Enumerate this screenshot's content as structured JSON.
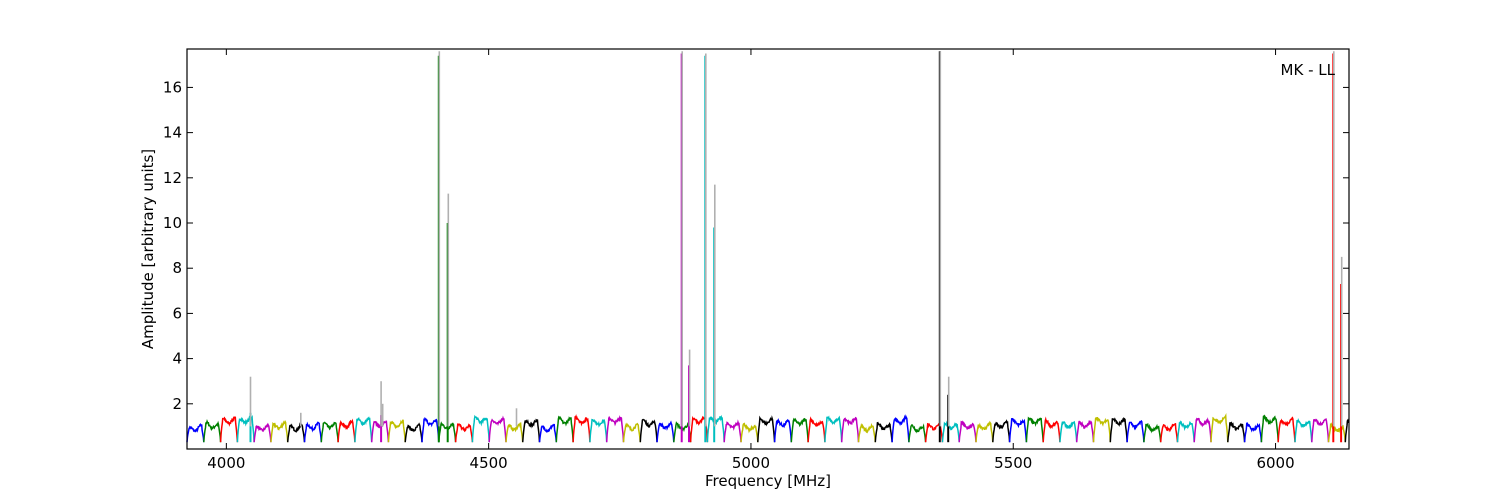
{
  "chart_data": {
    "type": "line",
    "title": "",
    "xlabel": "Frequency [MHz]",
    "ylabel": "Amplitude [arbitrary units]",
    "annotation": "MK - LL",
    "xlim": [
      3925,
      6140
    ],
    "ylim": [
      0.0,
      17.7
    ],
    "xticks": [
      4000,
      4500,
      5000,
      5500,
      6000
    ],
    "xtick_labels": [
      "4000",
      "4500",
      "5000",
      "5500",
      "6000"
    ],
    "yticks": [
      2,
      4,
      6,
      8,
      10,
      12,
      14,
      16
    ],
    "ytick_labels": [
      "2",
      "4",
      "6",
      "8",
      "10",
      "12",
      "14",
      "16"
    ],
    "grid": false,
    "legend": "none",
    "band_pattern": {
      "description": "repeating per-band bandpass ripple",
      "band_width_mhz": 32,
      "baseline": 1.15,
      "dip_min": 0.3
    },
    "colors_cycle": [
      "#0000ff",
      "#008000",
      "#ff0000",
      "#00bfbf",
      "#bf00bf",
      "#bfbf00",
      "#000000"
    ],
    "bands_start_mhz": 3925,
    "spikes": [
      {
        "x": 4405,
        "y": 17.4,
        "color": "#008000"
      },
      {
        "x": 4422,
        "y": 10.0,
        "color": "#008000"
      },
      {
        "x": 4046,
        "y": 1.6,
        "color": "#00bfbf"
      },
      {
        "x": 4295,
        "y": 1.5,
        "color": "#bf00bf"
      },
      {
        "x": 4868,
        "y": 17.5,
        "color": "#bf00bf"
      },
      {
        "x": 4882,
        "y": 3.7,
        "color": "#bf00bf"
      },
      {
        "x": 4913,
        "y": 17.4,
        "color": "#00bfbf"
      },
      {
        "x": 4930,
        "y": 9.8,
        "color": "#00bfbf"
      },
      {
        "x": 5360,
        "y": 17.6,
        "color": "#000000"
      },
      {
        "x": 5376,
        "y": 2.4,
        "color": "#000000"
      },
      {
        "x": 6110,
        "y": 17.5,
        "color": "#ff0000"
      },
      {
        "x": 6125,
        "y": 7.3,
        "color": "#ff0000"
      }
    ],
    "grey_spikes": [
      {
        "x": 4046,
        "y": 3.2
      },
      {
        "x": 4142,
        "y": 1.6
      },
      {
        "x": 4295,
        "y": 3.0
      },
      {
        "x": 4298,
        "y": 2.0
      },
      {
        "x": 4406,
        "y": 17.6
      },
      {
        "x": 4423,
        "y": 11.3
      },
      {
        "x": 4553,
        "y": 1.8
      },
      {
        "x": 4869,
        "y": 17.6
      },
      {
        "x": 4883,
        "y": 4.4
      },
      {
        "x": 4914,
        "y": 17.5
      },
      {
        "x": 4931,
        "y": 11.7
      },
      {
        "x": 5361,
        "y": 17.6
      },
      {
        "x": 5377,
        "y": 3.2
      },
      {
        "x": 6111,
        "y": 17.6
      },
      {
        "x": 6126,
        "y": 8.5
      }
    ]
  }
}
